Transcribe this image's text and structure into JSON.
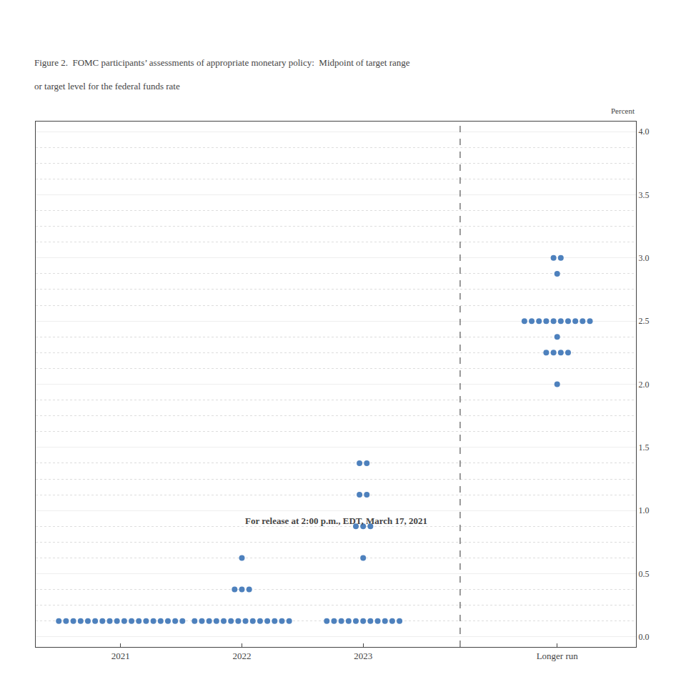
{
  "chart_data": {
    "type": "dot",
    "annotations": [
      "For release at 2:00 p.m., EDT, March 17, 2021"
    ],
    "title": "Figure 2.  FOMC participants’ assessments of appropriate monetary policy:  Midpoint of target range",
    "subtitle": "or target level for the federal funds rate",
    "y_label": "Percent",
    "categories": [
      "2021",
      "2022",
      "2023",
      "Longer run"
    ],
    "values": [
      [
        {
          "y": 0.125,
          "count": 18
        }
      ],
      [
        {
          "y": 0.125,
          "count": 14
        },
        {
          "y": 0.375,
          "count": 3
        },
        {
          "y": 0.625,
          "count": 1
        }
      ],
      [
        {
          "y": 0.125,
          "count": 11
        },
        {
          "y": 0.625,
          "count": 1
        },
        {
          "y": 0.875,
          "count": 3
        },
        {
          "y": 1.125,
          "count": 2
        },
        {
          "y": 1.375,
          "count": 2
        }
      ],
      [
        {
          "y": 2.0,
          "count": 1
        },
        {
          "y": 2.25,
          "count": 4
        },
        {
          "y": 2.375,
          "count": 1
        },
        {
          "y": 2.5,
          "count": 10
        },
        {
          "y": 2.875,
          "count": 1
        },
        {
          "y": 3.0,
          "count": 2
        }
      ]
    ],
    "color": "#4E81BD",
    "ylim": [
      -0.08,
      4.08
    ],
    "yticks": [
      {
        "value": 0,
        "label": "0.0"
      },
      0.5,
      {
        "value": 1,
        "label": "1.0"
      },
      1.5,
      {
        "value": 2,
        "label": "2.0"
      },
      2.5,
      {
        "value": 3,
        "label": "3.0"
      },
      3.5,
      {
        "value": 4,
        "label": "4.0"
      }
    ],
    "grid": true
  }
}
